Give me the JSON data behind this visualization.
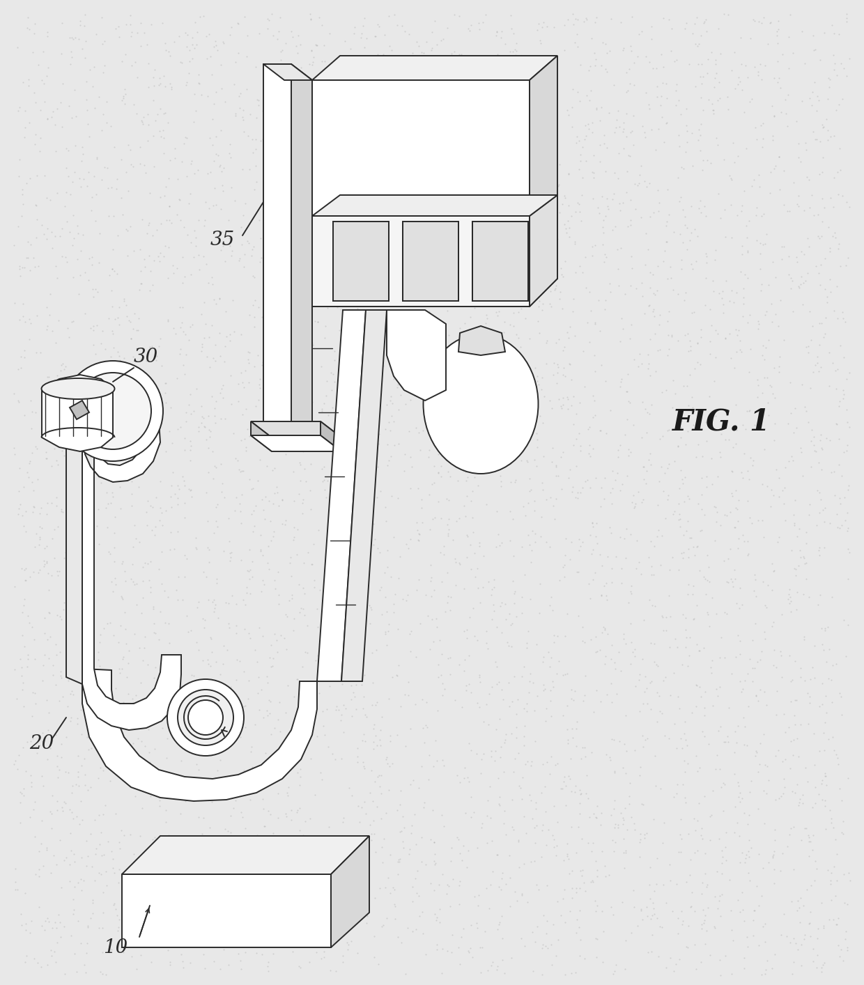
{
  "fig_label": "FIG. 1",
  "background_color": "#e8e8e8",
  "line_color": "#2a2a2a",
  "line_width": 1.4,
  "fig_width": 12.4,
  "fig_height": 14.14,
  "dpi": 100
}
